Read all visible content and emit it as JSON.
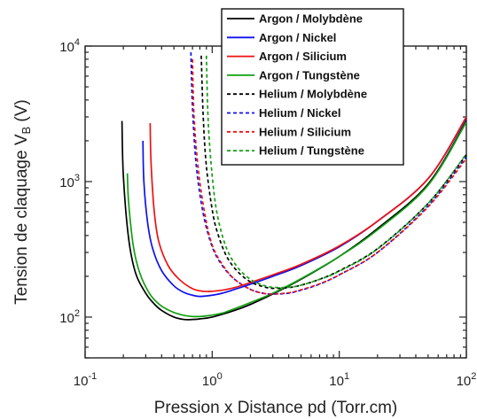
{
  "chart_data": {
    "type": "line",
    "title": "",
    "xlabel": "Pression x Distance pd (Torr.cm)",
    "ylabel_main": "Tension de claquage V",
    "ylabel_sub": "B",
    "ylabel_unit": " (V)",
    "x_scale": "log",
    "y_scale": "log",
    "xlim": [
      0.1,
      100
    ],
    "ylim": [
      50,
      10000
    ],
    "grid": false,
    "legend_position": "top-right",
    "x_ticks": [
      {
        "value": 0.1,
        "base": "10",
        "exp": "-1"
      },
      {
        "value": 1,
        "base": "10",
        "exp": "0"
      },
      {
        "value": 10,
        "base": "10",
        "exp": "1"
      },
      {
        "value": 100,
        "base": "10",
        "exp": "2"
      }
    ],
    "y_ticks": [
      {
        "value": 100,
        "base": "10",
        "exp": "2"
      },
      {
        "value": 1000,
        "base": "10",
        "exp": "3"
      },
      {
        "value": 10000,
        "base": "10",
        "exp": "4"
      }
    ],
    "series": [
      {
        "name": "Argon / Molybdène",
        "color": "#000000",
        "dash": "solid",
        "x": [
          0.195,
          0.2,
          0.22,
          0.25,
          0.3,
          0.35,
          0.4,
          0.5,
          0.6,
          0.7,
          0.8,
          1.0,
          1.5,
          2,
          3,
          5,
          10,
          20,
          50,
          100
        ],
        "y": [
          2800,
          1100,
          380,
          210,
          150,
          125,
          112,
          100,
          96,
          96,
          97,
          100,
          112,
          124,
          148,
          190,
          280,
          450,
          960,
          2800
        ]
      },
      {
        "name": "Argon / Nickel",
        "color": "#1010ee",
        "dash": "solid",
        "x": [
          0.285,
          0.29,
          0.31,
          0.34,
          0.4,
          0.5,
          0.6,
          0.7,
          0.8,
          1.0,
          1.2,
          1.5,
          2,
          3,
          5,
          10,
          20,
          50,
          100
        ],
        "y": [
          2000,
          1000,
          500,
          320,
          220,
          170,
          152,
          145,
          142,
          145,
          150,
          160,
          175,
          200,
          240,
          330,
          510,
          1050,
          2950
        ]
      },
      {
        "name": "Argon / Silicium",
        "color": "#ee1111",
        "dash": "solid",
        "x": [
          0.325,
          0.33,
          0.35,
          0.38,
          0.45,
          0.55,
          0.7,
          0.85,
          1.0,
          1.2,
          1.5,
          2,
          3,
          5,
          10,
          20,
          50,
          100
        ],
        "y": [
          2700,
          1400,
          600,
          360,
          240,
          190,
          162,
          155,
          155,
          158,
          165,
          180,
          205,
          245,
          335,
          510,
          1050,
          3000
        ]
      },
      {
        "name": "Argon / Tungstène",
        "color": "#11a011",
        "dash": "solid",
        "x": [
          0.215,
          0.22,
          0.24,
          0.27,
          0.32,
          0.38,
          0.45,
          0.55,
          0.7,
          0.9,
          1.2,
          1.6,
          2,
          3,
          5,
          10,
          20,
          50,
          100
        ],
        "y": [
          1150,
          700,
          330,
          210,
          150,
          125,
          113,
          105,
          101,
          102,
          107,
          118,
          128,
          150,
          192,
          280,
          440,
          940,
          2750
        ]
      },
      {
        "name": "Helium / Molybdène",
        "color": "#000000",
        "dash": "dashed",
        "x": [
          0.82,
          0.85,
          0.9,
          1.0,
          1.1,
          1.3,
          1.6,
          2.0,
          2.5,
          3,
          4,
          5,
          7,
          10,
          20,
          50,
          100
        ],
        "y": [
          8500,
          3000,
          1300,
          620,
          420,
          280,
          215,
          182,
          168,
          163,
          165,
          172,
          190,
          220,
          320,
          690,
          1580
        ]
      },
      {
        "name": "Helium / Nickel",
        "color": "#1010ee",
        "dash": "dashed",
        "x": [
          0.68,
          0.7,
          0.75,
          0.85,
          1.0,
          1.2,
          1.5,
          2.0,
          2.5,
          3,
          4,
          5,
          7,
          10,
          20,
          50,
          100
        ],
        "y": [
          9000,
          3500,
          1300,
          580,
          330,
          240,
          190,
          160,
          150,
          148,
          150,
          158,
          175,
          205,
          300,
          660,
          1520
        ]
      },
      {
        "name": "Helium / Silicium",
        "color": "#ee1111",
        "dash": "dashed",
        "x": [
          0.7,
          0.72,
          0.78,
          0.88,
          1.0,
          1.2,
          1.5,
          2.0,
          2.5,
          3,
          4,
          5,
          7,
          10,
          20,
          50,
          100
        ],
        "y": [
          8000,
          3000,
          1200,
          560,
          340,
          245,
          190,
          160,
          150,
          148,
          151,
          159,
          176,
          205,
          300,
          650,
          1480
        ]
      },
      {
        "name": "Helium / Tungstène",
        "color": "#11a011",
        "dash": "dashed",
        "x": [
          0.9,
          0.93,
          1.0,
          1.1,
          1.3,
          1.6,
          2.0,
          2.5,
          3,
          4,
          5,
          7,
          10,
          20,
          50,
          100
        ],
        "y": [
          8500,
          2800,
          1100,
          560,
          320,
          230,
          190,
          172,
          166,
          166,
          172,
          190,
          218,
          318,
          690,
          1600
        ]
      }
    ]
  }
}
